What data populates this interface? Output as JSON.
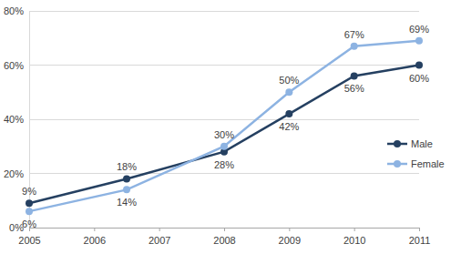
{
  "chart_data": {
    "type": "line",
    "x": [
      2005,
      2006.5,
      2008,
      2009,
      2010,
      2011
    ],
    "series": [
      {
        "name": "Male",
        "color": "#254061",
        "marker": "circle",
        "line_style": "solid",
        "values": [
          9,
          18,
          28,
          42,
          56,
          60
        ],
        "value_labels": [
          "9%",
          "18%",
          "28%",
          "42%",
          "56%",
          "60%"
        ]
      },
      {
        "name": "Female",
        "color": "#8db3e2",
        "marker": "circle",
        "line_style": "solid",
        "values": [
          6,
          14,
          30,
          50,
          67,
          69
        ],
        "value_labels": [
          "6%",
          "14%",
          "30%",
          "50%",
          "67%",
          "69%"
        ]
      }
    ],
    "xlim": [
      2005,
      2011
    ],
    "xticks": [
      2005,
      2006,
      2007,
      2008,
      2009,
      2010,
      2011
    ],
    "ylim": [
      0,
      80
    ],
    "yticks": [
      {
        "value": 0,
        "label": "0%"
      },
      {
        "value": 20,
        "label": "20%"
      },
      {
        "value": 40,
        "label": "40%"
      },
      {
        "value": 60,
        "label": "60%"
      },
      {
        "value": 80,
        "label": "80%"
      }
    ],
    "grid": true,
    "legend": "right",
    "data_labels": true
  }
}
